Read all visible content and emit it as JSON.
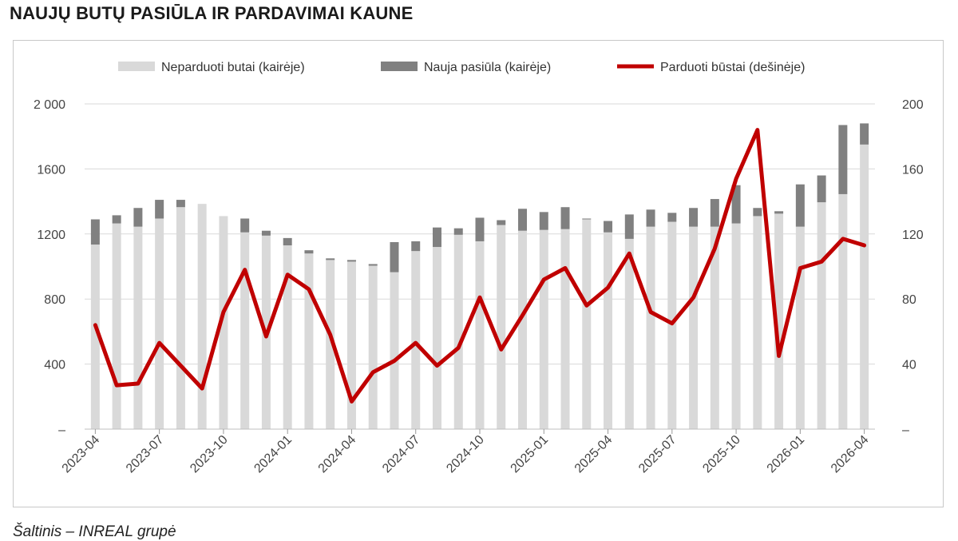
{
  "title": "NAUJŲ BUTŲ PASIŪLA IR PARDAVIMAI KAUNE",
  "source": "Šaltinis – INREAL grupė",
  "chart_data": {
    "type": "bar",
    "stacked": true,
    "title": "NAUJŲ BUTŲ PASIŪLA IR PARDAVIMAI KAUNE",
    "xlabel": "",
    "ylabel": "",
    "ylim_left": [
      0,
      2000
    ],
    "ylim_right": [
      0,
      200
    ],
    "y_ticks_left": [
      "–",
      "400",
      "800",
      "1200",
      "1600",
      "2 000"
    ],
    "y_ticks_right": [
      "–",
      "40",
      "80",
      "120",
      "160",
      "200"
    ],
    "x_tick_labels": [
      "2023-04",
      "2023-07",
      "2023-10",
      "2024-01",
      "2024-04",
      "2024-07",
      "2024-10",
      "2025-01",
      "2025-04",
      "2025-07",
      "2025-10",
      "2026-01",
      "2026-04"
    ],
    "x_tick_every": 3,
    "grid": "horizontal",
    "legend_position": "top",
    "categories": [
      "2023-04",
      "2023-05",
      "2023-06",
      "2023-07",
      "2023-08",
      "2023-09",
      "2023-10",
      "2023-11",
      "2023-12",
      "2024-01",
      "2024-02",
      "2024-03",
      "2024-04",
      "2024-05",
      "2024-06",
      "2024-07",
      "2024-08",
      "2024-09",
      "2024-10",
      "2024-11",
      "2024-12",
      "2025-01",
      "2025-02",
      "2025-03",
      "2025-04",
      "2025-05",
      "2025-06",
      "2025-07",
      "2025-08",
      "2025-09",
      "2025-10",
      "2025-11",
      "2025-12",
      "2026-01",
      "2026-02",
      "2026-03",
      "2026-04"
    ],
    "series": [
      {
        "name": "Neparduoti butai (kairėje)",
        "type": "bar",
        "axis": "left",
        "color": "#d9d9d9",
        "values": [
          1135,
          1265,
          1245,
          1295,
          1365,
          1385,
          1310,
          1210,
          1190,
          1130,
          1080,
          1040,
          1030,
          1005,
          965,
          1095,
          1120,
          1195,
          1155,
          1255,
          1220,
          1225,
          1230,
          1290,
          1210,
          1170,
          1245,
          1275,
          1245,
          1245,
          1265,
          1310,
          1325,
          1245,
          1395,
          1445,
          1750
        ]
      },
      {
        "name": "Nauja pasiūla (kairėje)",
        "type": "bar",
        "axis": "left",
        "color": "#808080",
        "values": [
          155,
          50,
          115,
          115,
          45,
          0,
          0,
          85,
          30,
          45,
          20,
          10,
          10,
          10,
          185,
          60,
          120,
          40,
          145,
          30,
          135,
          110,
          135,
          5,
          70,
          150,
          105,
          55,
          115,
          170,
          235,
          50,
          15,
          260,
          165,
          425,
          130
        ]
      },
      {
        "name": "Parduoti būstai (dešinėje)",
        "type": "line",
        "axis": "right",
        "color": "#c00000",
        "values": [
          64,
          27,
          28,
          53,
          39,
          25,
          72,
          98,
          57,
          95,
          86,
          58,
          17,
          35,
          42,
          53,
          39,
          50,
          81,
          49,
          70,
          92,
          99,
          76,
          87,
          108,
          72,
          65,
          81,
          111,
          154,
          184,
          45,
          99,
          103,
          117,
          113
        ]
      }
    ]
  }
}
